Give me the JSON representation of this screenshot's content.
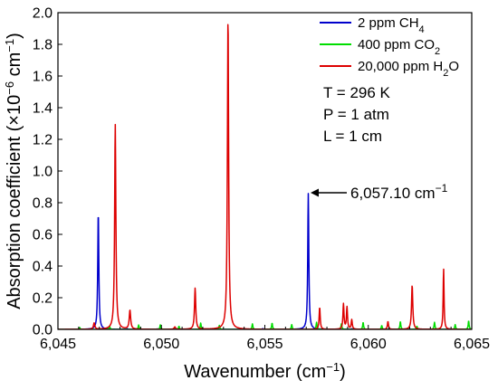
{
  "chart_data": {
    "type": "line",
    "xlabel": "Wavenumber (cm",
    "xlabel_sup": "−1",
    "xlabel_tail": ")",
    "ylabel": "Absorption coefficient (×10",
    "ylabel_sup1": "−6",
    "ylabel_mid": " cm",
    "ylabel_sup2": "−1",
    "ylabel_tail": ")",
    "xlim": [
      6045,
      6065
    ],
    "ylim": [
      0,
      2.0
    ],
    "x_ticks": [
      6045,
      6050,
      6055,
      6060,
      6065
    ],
    "x_tick_labels": [
      "6,045",
      "6,050",
      "6,055",
      "6,060",
      "6,065"
    ],
    "y_ticks": [
      0.0,
      0.2,
      0.4,
      0.6,
      0.8,
      1.0,
      1.2,
      1.4,
      1.6,
      1.8,
      2.0
    ],
    "y_tick_labels": [
      "0.0",
      "0.2",
      "0.4",
      "0.6",
      "0.8",
      "1.0",
      "1.2",
      "1.4",
      "1.6",
      "1.8",
      "2.0"
    ],
    "series": [
      {
        "name": "2 ppm CH4",
        "label_main": "2 ppm CH",
        "label_sub": "4",
        "color": "#0000cc",
        "peaks": [
          {
            "x": 6046.95,
            "h": 0.745,
            "w": 0.06
          },
          {
            "x": 6057.1,
            "h": 0.858,
            "w": 0.06
          },
          {
            "x": 6048.35,
            "h": 0.004,
            "w": 0.05
          },
          {
            "x": 6049.8,
            "h": 0.003,
            "w": 0.05
          },
          {
            "x": 6054.9,
            "h": 0.005,
            "w": 0.05
          },
          {
            "x": 6059.2,
            "h": 0.004,
            "w": 0.05
          },
          {
            "x": 6061.5,
            "h": 0.003,
            "w": 0.05
          },
          {
            "x": 6063.9,
            "h": 0.003,
            "w": 0.05
          }
        ]
      },
      {
        "name": "400 ppm CO2",
        "label_main": "400 ppm CO",
        "label_sub": "2",
        "color": "#00dd00",
        "peaks": [
          {
            "x": 6046.05,
            "h": 0.012,
            "w": 0.05
          },
          {
            "x": 6047.5,
            "h": 0.018,
            "w": 0.05
          },
          {
            "x": 6048.9,
            "h": 0.028,
            "w": 0.05
          },
          {
            "x": 6049.95,
            "h": 0.03,
            "w": 0.05
          },
          {
            "x": 6050.85,
            "h": 0.02,
            "w": 0.05
          },
          {
            "x": 6051.9,
            "h": 0.04,
            "w": 0.05
          },
          {
            "x": 6052.8,
            "h": 0.025,
            "w": 0.05
          },
          {
            "x": 6054.4,
            "h": 0.035,
            "w": 0.05
          },
          {
            "x": 6055.35,
            "h": 0.04,
            "w": 0.05
          },
          {
            "x": 6056.3,
            "h": 0.03,
            "w": 0.05
          },
          {
            "x": 6057.5,
            "h": 0.045,
            "w": 0.05
          },
          {
            "x": 6058.7,
            "h": 0.035,
            "w": 0.05
          },
          {
            "x": 6059.75,
            "h": 0.045,
            "w": 0.05
          },
          {
            "x": 6060.65,
            "h": 0.025,
            "w": 0.05
          },
          {
            "x": 6061.55,
            "h": 0.05,
            "w": 0.05
          },
          {
            "x": 6062.35,
            "h": 0.02,
            "w": 0.05
          },
          {
            "x": 6063.2,
            "h": 0.045,
            "w": 0.05
          },
          {
            "x": 6064.2,
            "h": 0.03,
            "w": 0.05
          },
          {
            "x": 6064.85,
            "h": 0.055,
            "w": 0.05
          }
        ]
      },
      {
        "name": "20,000 ppm H2O",
        "label_main": "20,000 ppm H",
        "label_sub": "2",
        "label_tail": "O",
        "color": "#dd0000",
        "peaks": [
          {
            "x": 6046.75,
            "h": 0.04,
            "w": 0.08
          },
          {
            "x": 6047.77,
            "h": 1.295,
            "w": 0.07
          },
          {
            "x": 6048.48,
            "h": 0.12,
            "w": 0.08
          },
          {
            "x": 6050.65,
            "h": 0.015,
            "w": 0.08
          },
          {
            "x": 6051.63,
            "h": 0.26,
            "w": 0.07
          },
          {
            "x": 6053.22,
            "h": 1.975,
            "w": 0.07
          },
          {
            "x": 6057.65,
            "h": 0.14,
            "w": 0.06
          },
          {
            "x": 6058.8,
            "h": 0.16,
            "w": 0.06
          },
          {
            "x": 6058.97,
            "h": 0.14,
            "w": 0.06
          },
          {
            "x": 6059.2,
            "h": 0.06,
            "w": 0.06
          },
          {
            "x": 6060.95,
            "h": 0.05,
            "w": 0.06
          },
          {
            "x": 6062.12,
            "h": 0.28,
            "w": 0.07
          },
          {
            "x": 6063.64,
            "h": 0.385,
            "w": 0.05
          }
        ]
      }
    ],
    "conditions": [
      "T = 296 K",
      "P = 1 atm",
      "L = 1 cm"
    ],
    "annotation": {
      "text": "6,057.10 cm",
      "sup": "−1",
      "x": 6057.1,
      "y": 0.858
    },
    "legend_position": "top-right",
    "grid": false
  }
}
